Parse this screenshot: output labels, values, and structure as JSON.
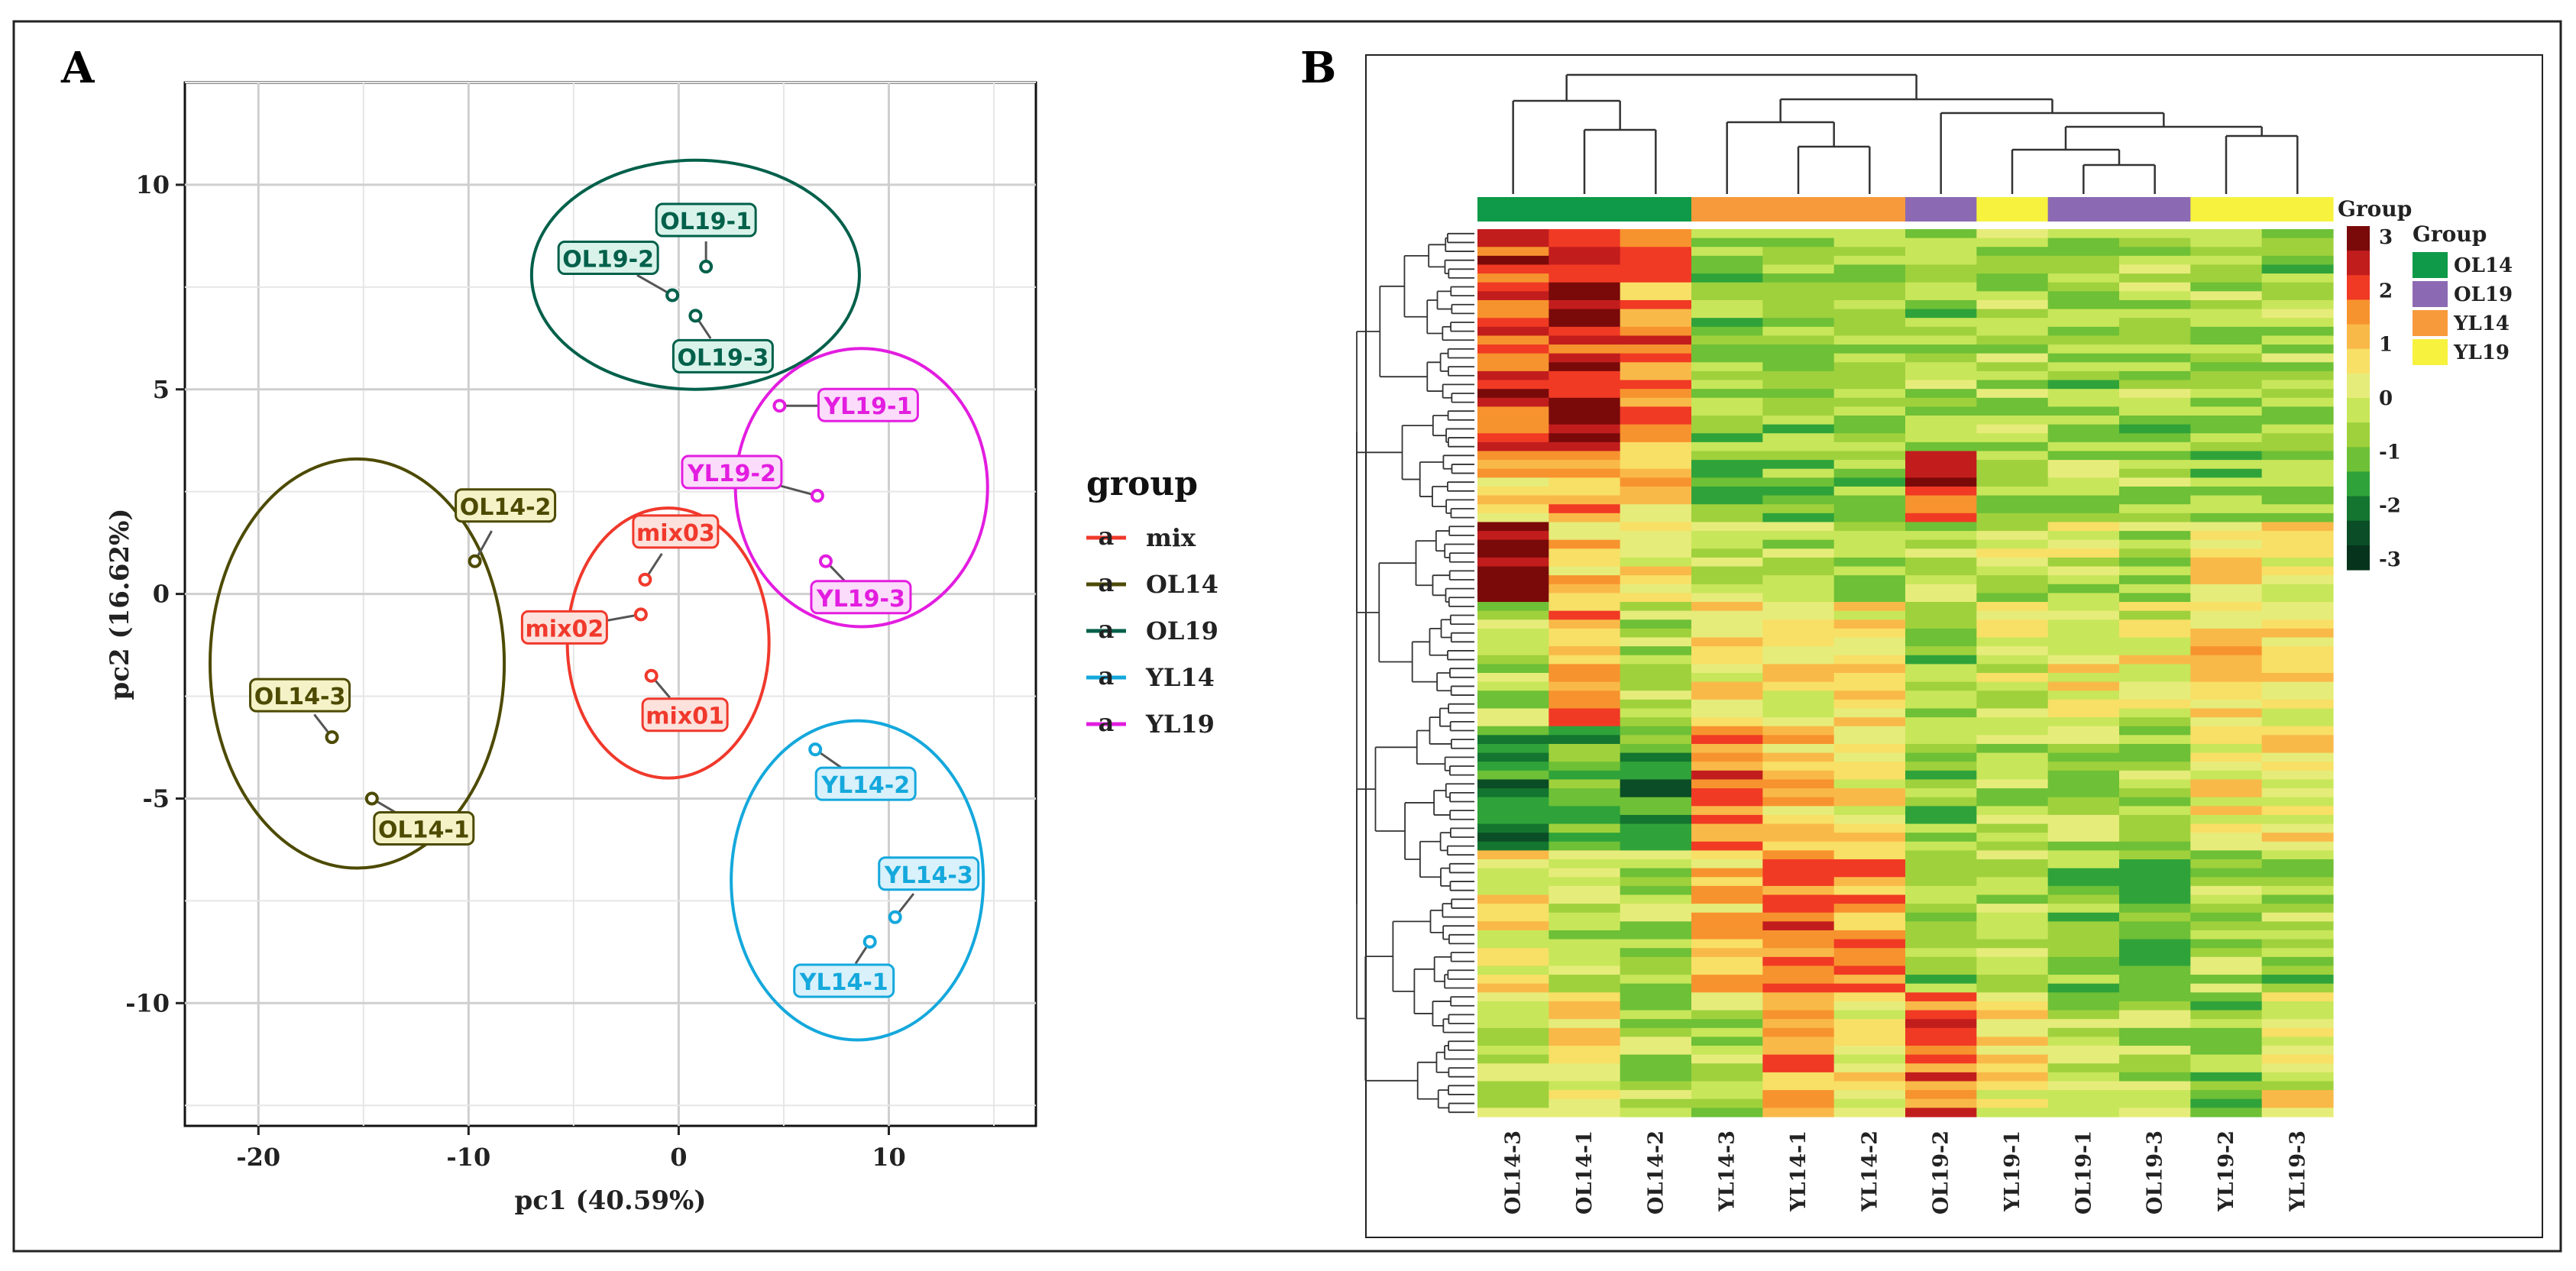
{
  "chart_data": [
    {
      "panel": "A",
      "type": "scatter",
      "xlabel": "pc1 (40.59%)",
      "ylabel": "pc2 (16.62%)",
      "xlim": [
        -23.5,
        17.0
      ],
      "ylim": [
        -13.0,
        12.5
      ],
      "x_ticks": [
        -20,
        -10,
        0,
        10
      ],
      "x_tick_labels": [
        "-20",
        "-10",
        "0",
        "10"
      ],
      "y_ticks": [
        10,
        5,
        0,
        -5,
        -10
      ],
      "y_tick_labels": [
        "10",
        "5",
        "0",
        "-5",
        "-10"
      ],
      "grid": true,
      "legend_title": "group",
      "series": [
        {
          "name": "mix",
          "color": "#f0392c",
          "points": [
            {
              "label": "mix01",
              "x": -1.3,
              "y": -2.0
            },
            {
              "label": "mix02",
              "x": -1.8,
              "y": -0.5
            },
            {
              "label": "mix03",
              "x": -1.6,
              "y": 0.35
            }
          ],
          "ellipse": {
            "cx": -0.5,
            "cy": -1.2,
            "rx": 4.8,
            "ry": 3.3
          }
        },
        {
          "name": "OL14",
          "color": "#4d4a00",
          "points": [
            {
              "label": "OL14-1",
              "x": -14.6,
              "y": -5.0
            },
            {
              "label": "OL14-2",
              "x": -9.7,
              "y": 0.8
            },
            {
              "label": "OL14-3",
              "x": -16.5,
              "y": -3.5
            }
          ],
          "ellipse": {
            "cx": -15.3,
            "cy": -1.7,
            "rx": 7.0,
            "ry": 5.0
          }
        },
        {
          "name": "OL19",
          "color": "#00604a",
          "points": [
            {
              "label": "OL19-1",
              "x": 1.3,
              "y": 8.0
            },
            {
              "label": "OL19-2",
              "x": -0.3,
              "y": 7.3
            },
            {
              "label": "OL19-3",
              "x": 0.8,
              "y": 6.8
            }
          ],
          "ellipse": {
            "cx": 0.8,
            "cy": 7.8,
            "rx": 7.8,
            "ry": 2.8
          }
        },
        {
          "name": "YL14",
          "color": "#14a8dc",
          "points": [
            {
              "label": "YL14-1",
              "x": 9.1,
              "y": -8.5
            },
            {
              "label": "YL14-2",
              "x": 6.5,
              "y": -3.8
            },
            {
              "label": "YL14-3",
              "x": 10.3,
              "y": -7.9
            }
          ],
          "ellipse": {
            "cx": 8.5,
            "cy": -7.0,
            "rx": 6.0,
            "ry": 3.9
          }
        },
        {
          "name": "YL19",
          "color": "#e31de0",
          "points": [
            {
              "label": "YL19-1",
              "x": 4.8,
              "y": 4.6
            },
            {
              "label": "YL19-2",
              "x": 6.6,
              "y": 2.4
            },
            {
              "label": "YL19-3",
              "x": 7.0,
              "y": 0.8
            }
          ],
          "ellipse": {
            "cx": 8.7,
            "cy": 2.6,
            "rx": 6.0,
            "ry": 3.4
          }
        }
      ]
    },
    {
      "panel": "B",
      "type": "heatmap",
      "columns": [
        "OL14-3",
        "OL14-1",
        "OL14-2",
        "YL14-3",
        "YL14-1",
        "YL14-2",
        "OL19-2",
        "YL19-1",
        "OL19-1",
        "OL19-3",
        "YL19-2",
        "YL19-3"
      ],
      "column_groups": [
        "OL14",
        "OL14",
        "OL14",
        "YL14",
        "YL14",
        "YL14",
        "OL19",
        "YL19",
        "OL19",
        "OL19",
        "YL19",
        "YL19"
      ],
      "annotation_title": "Group",
      "group_legend_title": "Group",
      "groups": [
        {
          "name": "OL14",
          "color": "#0e9a48"
        },
        {
          "name": "OL19",
          "color": "#8c6ab3"
        },
        {
          "name": "YL14",
          "color": "#f79a3c"
        },
        {
          "name": "YL19",
          "color": "#f7f23e"
        }
      ],
      "color_scale": {
        "ticks": [
          "3",
          "2",
          "1",
          "0",
          "-1",
          "-2",
          "-3"
        ],
        "colors": [
          "#7a0a0a",
          "#c21d1d",
          "#f03a24",
          "#f7932e",
          "#f9b948",
          "#f8df66",
          "#e6ec7a",
          "#c8e65a",
          "#9fd13c",
          "#6ec036",
          "#2fa33a",
          "#13752f",
          "#0b4d26",
          "#06331b"
        ]
      },
      "n_rows": 100,
      "row_pattern_note": "z-scores per metabolite row; hierarchically clustered rows and columns"
    }
  ]
}
